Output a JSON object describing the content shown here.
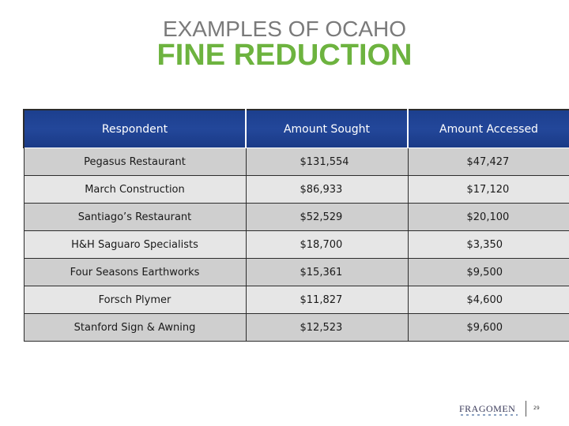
{
  "slide": {
    "title_top": "EXAMPLES OF OCAHO",
    "title_main": "FINE REDUCTION",
    "colors": {
      "title_top": "#7a7a7a",
      "title_main": "#6db33f",
      "header_bg": "#23479a",
      "row_odd": "#cfcfcf",
      "row_even": "#e6e6e6"
    }
  },
  "table": {
    "headers": [
      "Respondent",
      "Amount Sought",
      "Amount Accessed"
    ],
    "rows": [
      [
        "Pegasus Restaurant",
        "$131,554",
        "$47,427"
      ],
      [
        "March Construction",
        "$86,933",
        "$17,120"
      ],
      [
        "Santiago’s Restaurant",
        "$52,529",
        "$20,100"
      ],
      [
        "H&H Saguaro Specialists",
        "$18,700",
        "$3,350"
      ],
      [
        "Four Seasons Earthworks",
        "$15,361",
        "$9,500"
      ],
      [
        "Forsch Plymer",
        "$11,827",
        "$4,600"
      ],
      [
        "Stanford Sign & Awning",
        "$12,523",
        "$9,600"
      ]
    ]
  },
  "footer": {
    "logo_text": "FRAGOMEN",
    "page_number": "29"
  }
}
